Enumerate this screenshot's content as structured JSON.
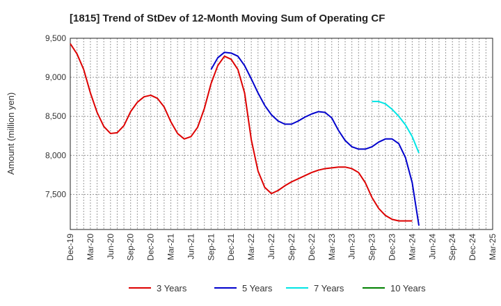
{
  "chart_data": {
    "type": "line",
    "title": "[1815]  Trend of StDev of 12-Month Moving Sum of Operating CF",
    "xlabel": "",
    "ylabel": "Amount (million yen)",
    "ylim": [
      7050,
      9500
    ],
    "yticks": [
      7500,
      8000,
      8500,
      9000,
      9500
    ],
    "ytick_labels": [
      "7,500",
      "8,000",
      "8,500",
      "9,000",
      "9,500"
    ],
    "x_start": "Dec-19",
    "x_months": 64,
    "xtick_step": 3,
    "xtick_labels": [
      "Dec-19",
      "Mar-20",
      "Jun-20",
      "Sep-20",
      "Dec-20",
      "Mar-21",
      "Jun-21",
      "Sep-21",
      "Dec-21",
      "Mar-22",
      "Jun-22",
      "Sep-22",
      "Dec-22",
      "Mar-23",
      "Jun-23",
      "Sep-23",
      "Dec-23",
      "Mar-24",
      "Jun-24",
      "Sep-24",
      "Dec-24",
      "Mar-25"
    ],
    "grid": true,
    "legend": "bottom",
    "series": [
      {
        "name": "3 Years",
        "color": "#dd0000",
        "start_index": 0,
        "values": [
          9430,
          9300,
          9100,
          8800,
          8550,
          8370,
          8280,
          8290,
          8380,
          8560,
          8680,
          8750,
          8770,
          8730,
          8620,
          8430,
          8280,
          8210,
          8240,
          8360,
          8600,
          8920,
          9150,
          9270,
          9230,
          9100,
          8800,
          8200,
          7800,
          7590,
          7510,
          7550,
          7610,
          7660,
          7700,
          7740,
          7780,
          7810,
          7830,
          7840,
          7850,
          7850,
          7830,
          7780,
          7650,
          7460,
          7320,
          7230,
          7180,
          7160,
          7160,
          7160
        ]
      },
      {
        "name": "5 Years",
        "color": "#0000cc",
        "start_index": 21,
        "values": [
          9100,
          9250,
          9320,
          9310,
          9270,
          9150,
          8980,
          8800,
          8640,
          8520,
          8440,
          8400,
          8400,
          8440,
          8490,
          8530,
          8560,
          8550,
          8480,
          8320,
          8190,
          8110,
          8080,
          8080,
          8110,
          8170,
          8210,
          8210,
          8150,
          7970,
          7650,
          7100
        ]
      },
      {
        "name": "7 Years",
        "color": "#00e5e5",
        "start_index": 45,
        "values": [
          8690,
          8690,
          8660,
          8590,
          8500,
          8390,
          8240,
          8030
        ]
      },
      {
        "name": "10 Years",
        "color": "#008000",
        "start_index": 0,
        "values": []
      }
    ]
  }
}
